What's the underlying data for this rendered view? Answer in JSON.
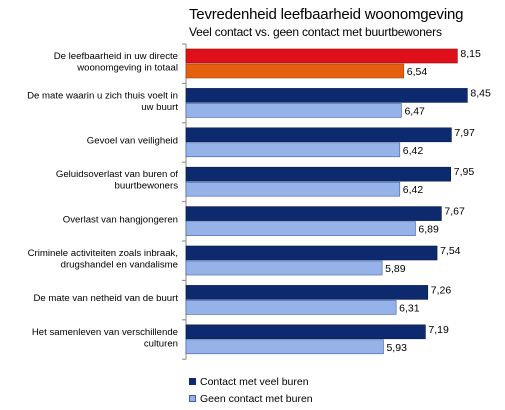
{
  "chart_data": {
    "type": "bar",
    "orientation": "horizontal",
    "title": "Tevredenheid leefbaarheid woonomgeving",
    "subtitle": "Veel contact vs. geen contact met buurtbewoners",
    "categories": [
      [
        "De leefbaarheid in uw directe",
        "woonomgeving in totaal"
      ],
      [
        "De mate waarin u zich thuis voelt in",
        "uw buurt"
      ],
      [
        "Gevoel van veiligheid"
      ],
      [
        "Geluidsoverlast van buren of",
        "buurtbewoners"
      ],
      [
        "Overlast van hangjongeren"
      ],
      [
        "Criminele activiteiten zoals inbraak,",
        "drugshandel en vandalisme"
      ],
      [
        "De mate van netheid van de buurt"
      ],
      [
        "Het samenleven van verschillende",
        "culturen"
      ]
    ],
    "series": [
      {
        "name": "Contact met veel buren",
        "values": [
          8.15,
          8.45,
          7.97,
          7.95,
          7.67,
          7.54,
          7.26,
          7.19
        ]
      },
      {
        "name": "Geen contact met buren",
        "values": [
          6.54,
          6.47,
          6.42,
          6.42,
          6.89,
          5.89,
          6.31,
          5.93
        ]
      }
    ],
    "value_labels": [
      [
        "8,15",
        "8,45",
        "7,97",
        "7,95",
        "7,67",
        "7,54",
        "7,26",
        "7,19"
      ],
      [
        "6,54",
        "6,47",
        "6,42",
        "6,42",
        "6,89",
        "5,89",
        "6,31",
        "5,93"
      ]
    ],
    "highlight_colors": {
      "series1": "#e0101a",
      "series2": "#e4600f"
    },
    "series_colors": [
      "#0e2a6e",
      "#95b3e8"
    ],
    "xlim": [
      0,
      9
    ],
    "grid": false,
    "legend_position": "bottom"
  }
}
